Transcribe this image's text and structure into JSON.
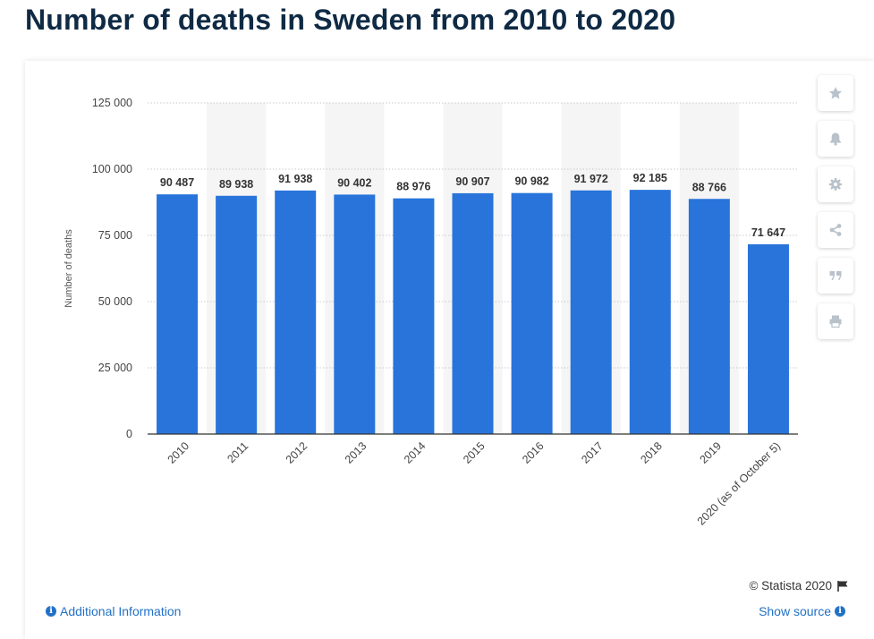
{
  "page": {
    "title": "Number of deaths in Sweden from 2010 to 2020"
  },
  "footer": {
    "credit": "© Statista 2020",
    "additional_info": "Additional Information",
    "show_source": "Show source"
  },
  "toolbar": {
    "icons": [
      "star-icon",
      "bell-icon",
      "gear-icon",
      "share-icon",
      "quote-icon",
      "print-icon"
    ]
  },
  "colors": {
    "bar": "#2874db",
    "band": "#f5f5f5",
    "title": "#0f2a44",
    "link": "#2171c7"
  },
  "chart_data": {
    "type": "bar",
    "title": "",
    "xlabel": "",
    "ylabel": "Number of deaths",
    "categories": [
      "2010",
      "2011",
      "2012",
      "2013",
      "2014",
      "2015",
      "2016",
      "2017",
      "2018",
      "2019",
      "2020 (as of October 5)"
    ],
    "values": [
      90487,
      89938,
      91938,
      90402,
      88976,
      90907,
      90982,
      91972,
      92185,
      88766,
      71647
    ],
    "value_labels": [
      "90 487",
      "89 938",
      "91 938",
      "90 402",
      "88 976",
      "90 907",
      "90 982",
      "91 972",
      "92 185",
      "88 766",
      "71 647"
    ],
    "yticks": [
      0,
      25000,
      50000,
      75000,
      100000,
      125000
    ],
    "ytick_labels": [
      "0",
      "25 000",
      "50 000",
      "75 000",
      "100 000",
      "125 000"
    ],
    "ylim": [
      0,
      125000
    ],
    "grid": true,
    "legend": "none"
  }
}
